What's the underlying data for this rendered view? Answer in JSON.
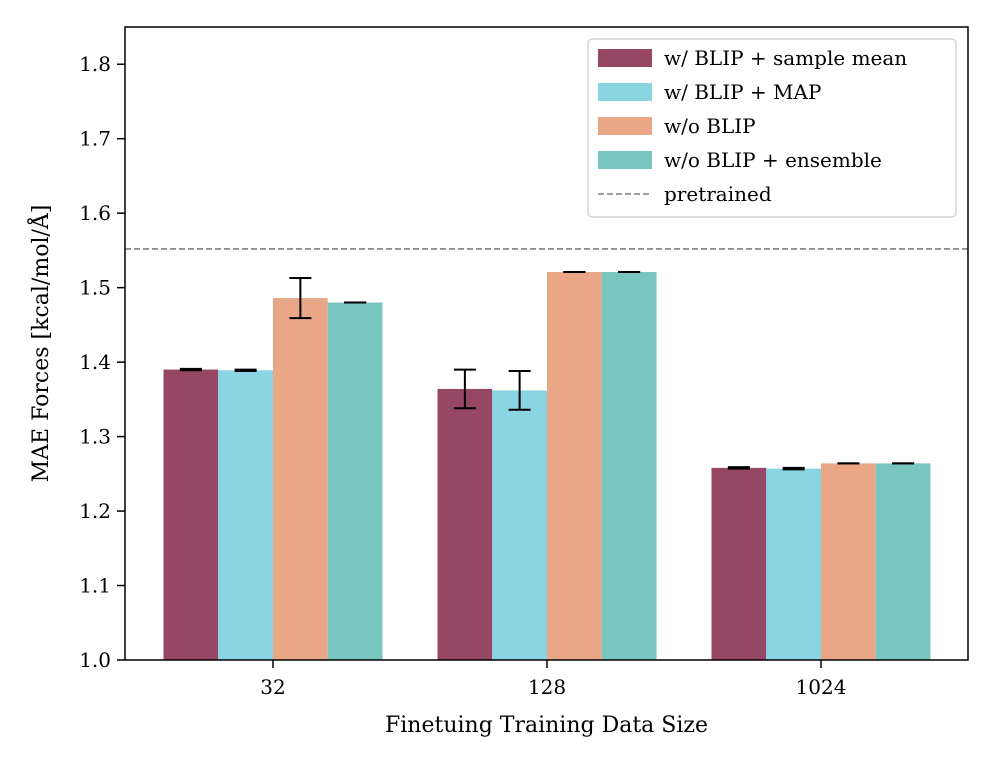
{
  "chart_data": {
    "type": "bar",
    "title": "",
    "xlabel": "Finetuing Training Data Size",
    "ylabel": "MAE Forces [kcal/mol/Å]",
    "ylim": [
      1.0,
      1.85
    ],
    "yticks": [
      1.0,
      1.1,
      1.2,
      1.3,
      1.4,
      1.5,
      1.6,
      1.7,
      1.8
    ],
    "ytick_labels": [
      "1.0",
      "1.1",
      "1.2",
      "1.3",
      "1.4",
      "1.5",
      "1.6",
      "1.7",
      "1.8"
    ],
    "categories": [
      "32",
      "128",
      "1024"
    ],
    "series": [
      {
        "name": "w/ BLIP + sample mean",
        "color": "#954764",
        "values": [
          1.39,
          1.364,
          1.258
        ],
        "errors": [
          0.001,
          0.026,
          0.001
        ]
      },
      {
        "name": "w/ BLIP + MAP",
        "color": "#8AD5E4",
        "values": [
          1.389,
          1.362,
          1.257
        ],
        "errors": [
          0.001,
          0.026,
          0.001
        ]
      },
      {
        "name": "w/o BLIP",
        "color": "#E9A788",
        "values": [
          1.486,
          1.521,
          1.264
        ],
        "errors": [
          0.027,
          0.0,
          0.0
        ]
      },
      {
        "name": "w/o BLIP + ensemble",
        "color": "#79C6C1",
        "values": [
          1.48,
          1.521,
          1.264
        ],
        "errors": [
          0.0,
          0.0,
          0.0
        ]
      }
    ],
    "reference_line": {
      "name": "pretrained",
      "value": 1.552,
      "color": "#808080",
      "style": "dashed"
    },
    "legend_position": "top-right",
    "grid": false
  }
}
